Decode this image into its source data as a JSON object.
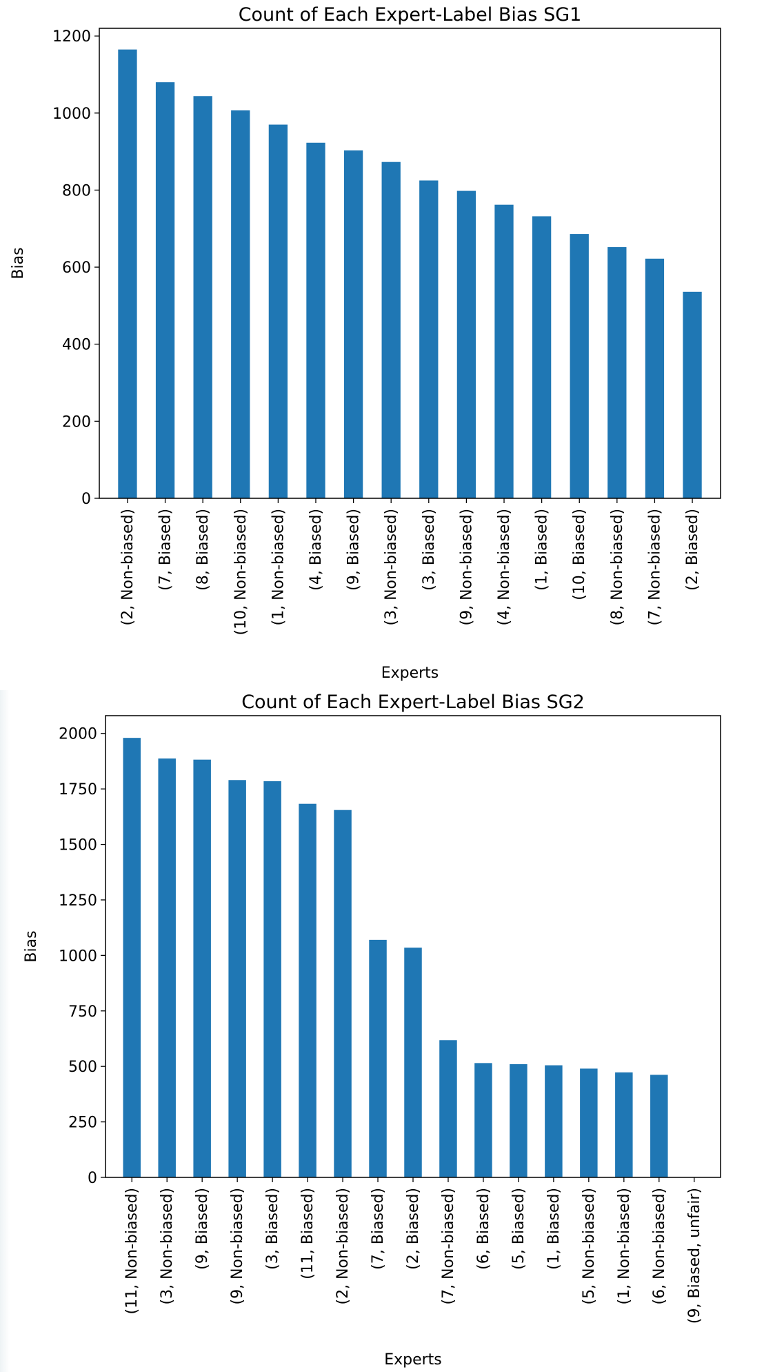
{
  "chart_data": [
    {
      "type": "bar",
      "title": "Count of Each Expert-Label Bias SG1",
      "xlabel": "Experts",
      "ylabel": "Bias",
      "ylim": [
        0,
        1220
      ],
      "yticks": [
        0,
        200,
        400,
        600,
        800,
        1000,
        1200
      ],
      "color": "#1f77b4",
      "categories": [
        "(2, Non-biased)",
        "(7, Biased)",
        "(8, Biased)",
        "(10, Non-biased)",
        "(1, Non-biased)",
        "(4, Biased)",
        "(9, Biased)",
        "(3, Non-biased)",
        "(3, Biased)",
        "(9, Non-biased)",
        "(4, Non-biased)",
        "(1, Biased)",
        "(10, Biased)",
        "(8, Non-biased)",
        "(7, Non-biased)",
        "(2, Biased)"
      ],
      "values": [
        1165,
        1080,
        1044,
        1007,
        970,
        923,
        903,
        873,
        825,
        798,
        762,
        732,
        686,
        652,
        622,
        536
      ]
    },
    {
      "type": "bar",
      "title": "Count of Each Expert-Label Bias SG2",
      "xlabel": "Experts",
      "ylabel": "Bias",
      "ylim": [
        0,
        2080
      ],
      "yticks": [
        0,
        250,
        500,
        750,
        1000,
        1250,
        1500,
        1750,
        2000
      ],
      "color": "#1f77b4",
      "categories": [
        "(11, Non-biased)",
        "(3, Non-biased)",
        "(9, Biased)",
        "(9, Non-biased)",
        "(3, Biased)",
        "(11, Biased)",
        "(2, Non-biased)",
        "(7, Biased)",
        "(2, Biased)",
        "(7, Non-biased)",
        "(6, Biased)",
        "(5, Biased)",
        "(1, Biased)",
        "(5, Non-biased)",
        "(1, Non-biased)",
        "(6, Non-biased)",
        "(9, Biased, unfair)"
      ],
      "values": [
        1980,
        1887,
        1882,
        1790,
        1785,
        1683,
        1655,
        1070,
        1035,
        618,
        515,
        510,
        505,
        490,
        473,
        462,
        1
      ]
    }
  ]
}
